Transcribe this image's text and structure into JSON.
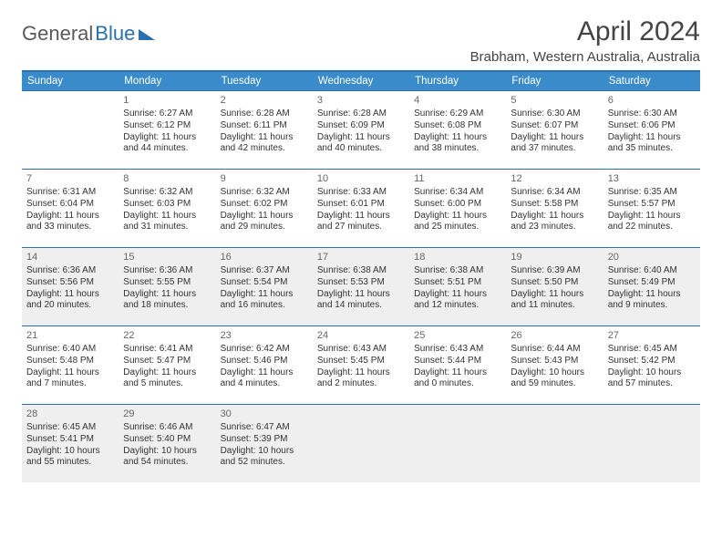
{
  "brand": {
    "part1": "General",
    "part2": "Blue"
  },
  "title": "April 2024",
  "subtitle": "Brabham, Western Australia, Australia",
  "colors": {
    "header_bg": "#3a8bc9",
    "rule": "#2c6fb0",
    "shaded_bg": "#efefef",
    "text": "#333333"
  },
  "dow": [
    "Sunday",
    "Monday",
    "Tuesday",
    "Wednesday",
    "Thursday",
    "Friday",
    "Saturday"
  ],
  "weeks": [
    {
      "shaded": false,
      "days": [
        {
          "num": "",
          "lines": []
        },
        {
          "num": "1",
          "lines": [
            "Sunrise: 6:27 AM",
            "Sunset: 6:12 PM",
            "Daylight: 11 hours",
            "and 44 minutes."
          ]
        },
        {
          "num": "2",
          "lines": [
            "Sunrise: 6:28 AM",
            "Sunset: 6:11 PM",
            "Daylight: 11 hours",
            "and 42 minutes."
          ]
        },
        {
          "num": "3",
          "lines": [
            "Sunrise: 6:28 AM",
            "Sunset: 6:09 PM",
            "Daylight: 11 hours",
            "and 40 minutes."
          ]
        },
        {
          "num": "4",
          "lines": [
            "Sunrise: 6:29 AM",
            "Sunset: 6:08 PM",
            "Daylight: 11 hours",
            "and 38 minutes."
          ]
        },
        {
          "num": "5",
          "lines": [
            "Sunrise: 6:30 AM",
            "Sunset: 6:07 PM",
            "Daylight: 11 hours",
            "and 37 minutes."
          ]
        },
        {
          "num": "6",
          "lines": [
            "Sunrise: 6:30 AM",
            "Sunset: 6:06 PM",
            "Daylight: 11 hours",
            "and 35 minutes."
          ]
        }
      ]
    },
    {
      "shaded": false,
      "days": [
        {
          "num": "7",
          "lines": [
            "Sunrise: 6:31 AM",
            "Sunset: 6:04 PM",
            "Daylight: 11 hours",
            "and 33 minutes."
          ]
        },
        {
          "num": "8",
          "lines": [
            "Sunrise: 6:32 AM",
            "Sunset: 6:03 PM",
            "Daylight: 11 hours",
            "and 31 minutes."
          ]
        },
        {
          "num": "9",
          "lines": [
            "Sunrise: 6:32 AM",
            "Sunset: 6:02 PM",
            "Daylight: 11 hours",
            "and 29 minutes."
          ]
        },
        {
          "num": "10",
          "lines": [
            "Sunrise: 6:33 AM",
            "Sunset: 6:01 PM",
            "Daylight: 11 hours",
            "and 27 minutes."
          ]
        },
        {
          "num": "11",
          "lines": [
            "Sunrise: 6:34 AM",
            "Sunset: 6:00 PM",
            "Daylight: 11 hours",
            "and 25 minutes."
          ]
        },
        {
          "num": "12",
          "lines": [
            "Sunrise: 6:34 AM",
            "Sunset: 5:58 PM",
            "Daylight: 11 hours",
            "and 23 minutes."
          ]
        },
        {
          "num": "13",
          "lines": [
            "Sunrise: 6:35 AM",
            "Sunset: 5:57 PM",
            "Daylight: 11 hours",
            "and 22 minutes."
          ]
        }
      ]
    },
    {
      "shaded": true,
      "days": [
        {
          "num": "14",
          "lines": [
            "Sunrise: 6:36 AM",
            "Sunset: 5:56 PM",
            "Daylight: 11 hours",
            "and 20 minutes."
          ]
        },
        {
          "num": "15",
          "lines": [
            "Sunrise: 6:36 AM",
            "Sunset: 5:55 PM",
            "Daylight: 11 hours",
            "and 18 minutes."
          ]
        },
        {
          "num": "16",
          "lines": [
            "Sunrise: 6:37 AM",
            "Sunset: 5:54 PM",
            "Daylight: 11 hours",
            "and 16 minutes."
          ]
        },
        {
          "num": "17",
          "lines": [
            "Sunrise: 6:38 AM",
            "Sunset: 5:53 PM",
            "Daylight: 11 hours",
            "and 14 minutes."
          ]
        },
        {
          "num": "18",
          "lines": [
            "Sunrise: 6:38 AM",
            "Sunset: 5:51 PM",
            "Daylight: 11 hours",
            "and 12 minutes."
          ]
        },
        {
          "num": "19",
          "lines": [
            "Sunrise: 6:39 AM",
            "Sunset: 5:50 PM",
            "Daylight: 11 hours",
            "and 11 minutes."
          ]
        },
        {
          "num": "20",
          "lines": [
            "Sunrise: 6:40 AM",
            "Sunset: 5:49 PM",
            "Daylight: 11 hours",
            "and 9 minutes."
          ]
        }
      ]
    },
    {
      "shaded": false,
      "days": [
        {
          "num": "21",
          "lines": [
            "Sunrise: 6:40 AM",
            "Sunset: 5:48 PM",
            "Daylight: 11 hours",
            "and 7 minutes."
          ]
        },
        {
          "num": "22",
          "lines": [
            "Sunrise: 6:41 AM",
            "Sunset: 5:47 PM",
            "Daylight: 11 hours",
            "and 5 minutes."
          ]
        },
        {
          "num": "23",
          "lines": [
            "Sunrise: 6:42 AM",
            "Sunset: 5:46 PM",
            "Daylight: 11 hours",
            "and 4 minutes."
          ]
        },
        {
          "num": "24",
          "lines": [
            "Sunrise: 6:43 AM",
            "Sunset: 5:45 PM",
            "Daylight: 11 hours",
            "and 2 minutes."
          ]
        },
        {
          "num": "25",
          "lines": [
            "Sunrise: 6:43 AM",
            "Sunset: 5:44 PM",
            "Daylight: 11 hours",
            "and 0 minutes."
          ]
        },
        {
          "num": "26",
          "lines": [
            "Sunrise: 6:44 AM",
            "Sunset: 5:43 PM",
            "Daylight: 10 hours",
            "and 59 minutes."
          ]
        },
        {
          "num": "27",
          "lines": [
            "Sunrise: 6:45 AM",
            "Sunset: 5:42 PM",
            "Daylight: 10 hours",
            "and 57 minutes."
          ]
        }
      ]
    },
    {
      "shaded": true,
      "days": [
        {
          "num": "28",
          "lines": [
            "Sunrise: 6:45 AM",
            "Sunset: 5:41 PM",
            "Daylight: 10 hours",
            "and 55 minutes."
          ]
        },
        {
          "num": "29",
          "lines": [
            "Sunrise: 6:46 AM",
            "Sunset: 5:40 PM",
            "Daylight: 10 hours",
            "and 54 minutes."
          ]
        },
        {
          "num": "30",
          "lines": [
            "Sunrise: 6:47 AM",
            "Sunset: 5:39 PM",
            "Daylight: 10 hours",
            "and 52 minutes."
          ]
        },
        {
          "num": "",
          "lines": []
        },
        {
          "num": "",
          "lines": []
        },
        {
          "num": "",
          "lines": []
        },
        {
          "num": "",
          "lines": []
        }
      ]
    }
  ]
}
